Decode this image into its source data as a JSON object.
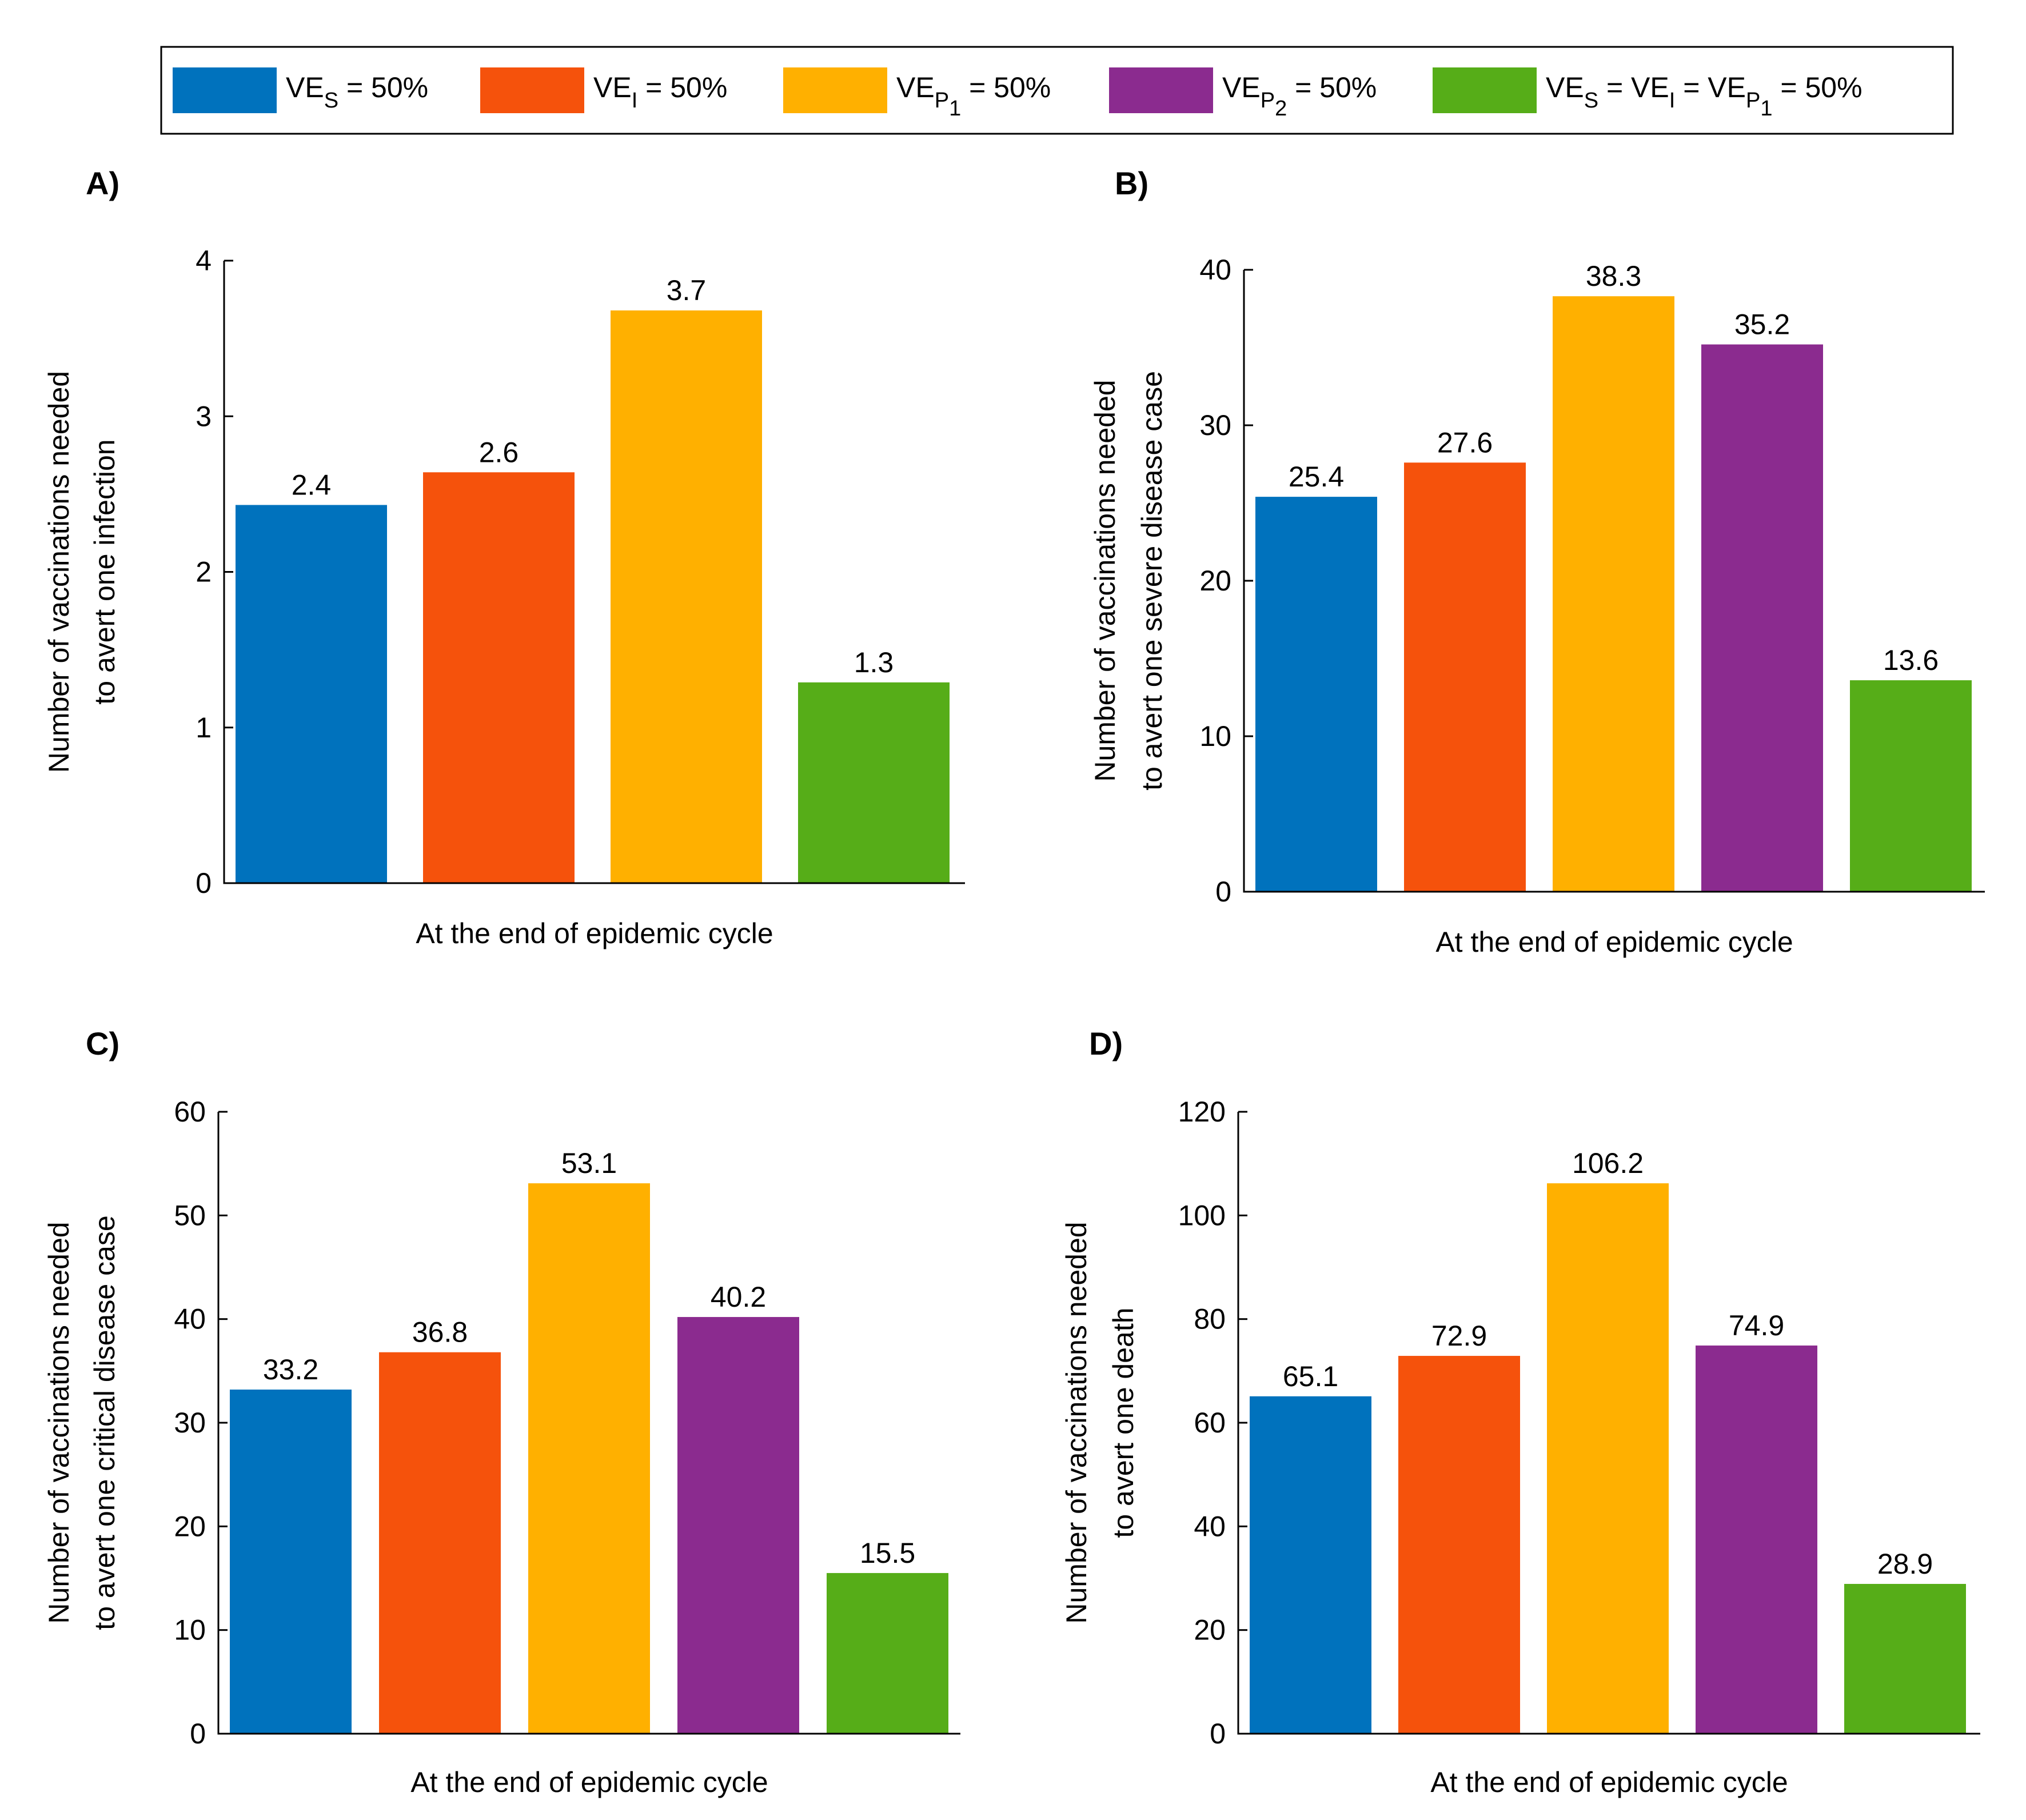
{
  "legend": {
    "items": [
      {
        "key": "ves",
        "color": "#0072BD",
        "parts": [
          {
            "t": "VE"
          },
          {
            "t": "S",
            "sub": true
          },
          {
            "t": " = 50%"
          }
        ]
      },
      {
        "key": "vei",
        "color": "#F5520C",
        "parts": [
          {
            "t": "VE"
          },
          {
            "t": "I",
            "sub": true
          },
          {
            "t": " = 50%"
          }
        ]
      },
      {
        "key": "vep1",
        "color": "#FFB000",
        "parts": [
          {
            "t": "VE"
          },
          {
            "t": "P",
            "sub": true
          },
          {
            "t": "1",
            "sub2": true
          },
          {
            "t": " = 50%"
          }
        ]
      },
      {
        "key": "vep2",
        "color": "#8B2B8F",
        "parts": [
          {
            "t": "VE"
          },
          {
            "t": "P",
            "sub": true
          },
          {
            "t": "2",
            "sub2": true
          },
          {
            "t": " = 50%"
          }
        ]
      },
      {
        "key": "all",
        "color": "#56AD18",
        "parts": [
          {
            "t": "VE"
          },
          {
            "t": "S",
            "sub": true
          },
          {
            "t": " = VE"
          },
          {
            "t": "I",
            "sub": true
          },
          {
            "t": " = VE"
          },
          {
            "t": "P",
            "sub": true
          },
          {
            "t": "1",
            "sub2": true
          },
          {
            "t": " = 50%"
          }
        ]
      }
    ]
  },
  "chart_data": [
    {
      "panel": "A)",
      "type": "bar",
      "series_keys": [
        "ves",
        "vei",
        "vep1",
        "all"
      ],
      "values": [
        2.43,
        2.64,
        3.68,
        1.29
      ],
      "value_labels": [
        "2.4",
        "2.6",
        "3.7",
        "1.3"
      ],
      "ylim": [
        0,
        4
      ],
      "yticks": [
        "0",
        "1",
        "2",
        "3",
        "4"
      ],
      "xlabel": "At the end of epidemic cycle",
      "ylabel": [
        "Number of vaccinations needed",
        "to avert one infection"
      ]
    },
    {
      "panel": "B)",
      "type": "bar",
      "series_keys": [
        "ves",
        "vei",
        "vep1",
        "vep2",
        "all"
      ],
      "values": [
        25.4,
        27.6,
        38.3,
        35.2,
        13.6
      ],
      "value_labels": [
        "25.4",
        "27.6",
        "38.3",
        "35.2",
        "13.6"
      ],
      "ylim": [
        0,
        40
      ],
      "yticks": [
        "0",
        "10",
        "20",
        "30",
        "40"
      ],
      "xlabel": "At the end of epidemic cycle",
      "ylabel": [
        "Number of vaccinations needed",
        "to avert one severe disease case"
      ]
    },
    {
      "panel": "C)",
      "type": "bar",
      "series_keys": [
        "ves",
        "vei",
        "vep1",
        "vep2",
        "all"
      ],
      "values": [
        33.2,
        36.8,
        53.1,
        40.2,
        15.5
      ],
      "value_labels": [
        "33.2",
        "36.8",
        "53.1",
        "40.2",
        "15.5"
      ],
      "ylim": [
        0,
        60
      ],
      "yticks": [
        "0",
        "10",
        "20",
        "30",
        "40",
        "50",
        "60"
      ],
      "xlabel": "At the end of epidemic cycle",
      "ylabel": [
        "Number of vaccinations needed",
        "to avert one critical disease case"
      ]
    },
    {
      "panel": "D)",
      "type": "bar",
      "series_keys": [
        "ves",
        "vei",
        "vep1",
        "vep2",
        "all"
      ],
      "values": [
        65.1,
        72.9,
        106.2,
        74.9,
        28.9
      ],
      "value_labels": [
        "65.1",
        "72.9",
        "106.2",
        "74.9",
        "28.9"
      ],
      "ylim": [
        0,
        120
      ],
      "yticks": [
        "0",
        "20",
        "40",
        "60",
        "80",
        "100",
        "120"
      ],
      "xlabel": "At the end of epidemic cycle",
      "ylabel": [
        "Number of vaccinations needed",
        "to avert one death"
      ]
    }
  ]
}
